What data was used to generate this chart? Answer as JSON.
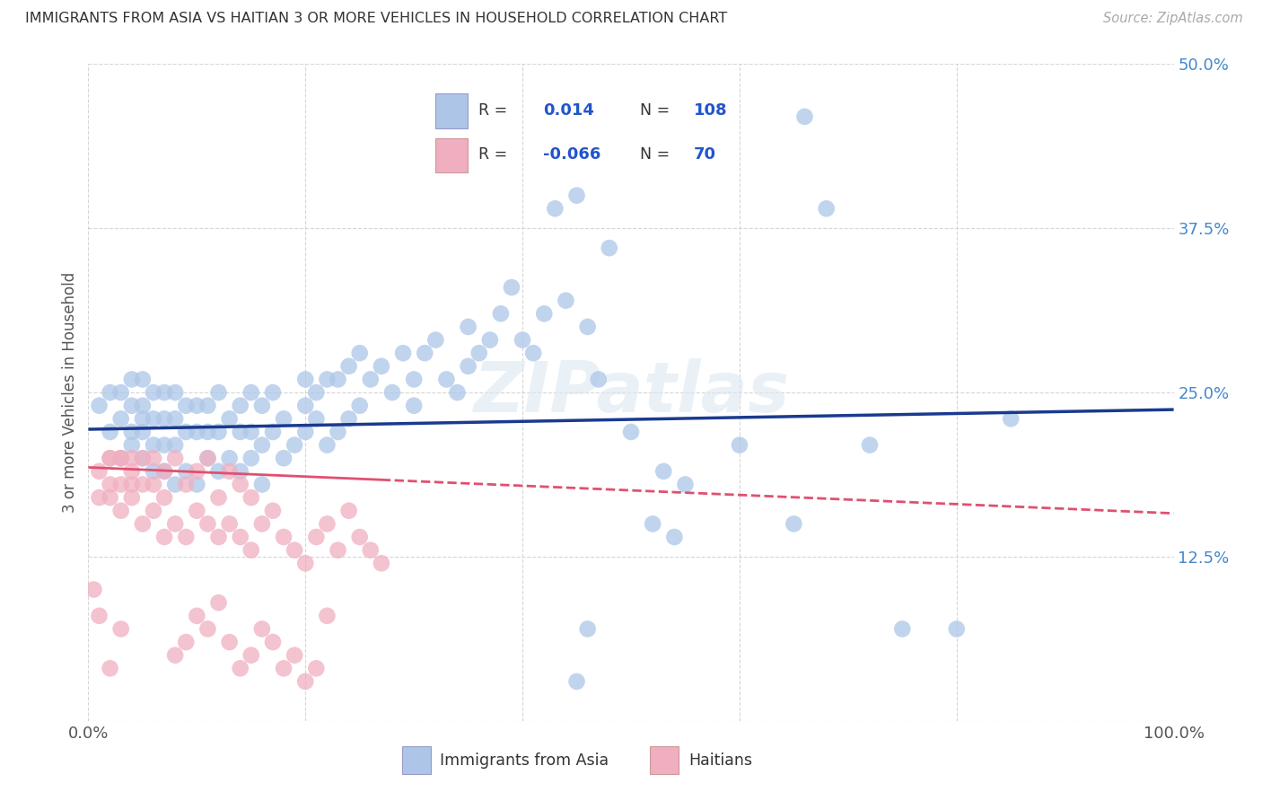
{
  "title": "IMMIGRANTS FROM ASIA VS HAITIAN 3 OR MORE VEHICLES IN HOUSEHOLD CORRELATION CHART",
  "source": "Source: ZipAtlas.com",
  "ylabel": "3 or more Vehicles in Household",
  "xlim": [
    0.0,
    1.0
  ],
  "ylim": [
    0.0,
    0.5
  ],
  "blue_R": "0.014",
  "blue_N": "108",
  "pink_R": "-0.066",
  "pink_N": "70",
  "blue_color": "#adc6e8",
  "pink_color": "#f0afc0",
  "blue_line_color": "#1a3a8f",
  "pink_line_color": "#e05070",
  "legend_label_blue": "Immigrants from Asia",
  "legend_label_pink": "Haitians",
  "watermark": "ZIPatlas",
  "blue_x": [
    0.01,
    0.02,
    0.02,
    0.03,
    0.03,
    0.03,
    0.04,
    0.04,
    0.04,
    0.04,
    0.05,
    0.05,
    0.05,
    0.05,
    0.05,
    0.06,
    0.06,
    0.06,
    0.06,
    0.07,
    0.07,
    0.07,
    0.07,
    0.08,
    0.08,
    0.08,
    0.08,
    0.09,
    0.09,
    0.09,
    0.1,
    0.1,
    0.1,
    0.11,
    0.11,
    0.11,
    0.12,
    0.12,
    0.12,
    0.13,
    0.13,
    0.14,
    0.14,
    0.14,
    0.15,
    0.15,
    0.15,
    0.16,
    0.16,
    0.16,
    0.17,
    0.17,
    0.18,
    0.18,
    0.19,
    0.2,
    0.2,
    0.2,
    0.21,
    0.21,
    0.22,
    0.22,
    0.23,
    0.23,
    0.24,
    0.24,
    0.25,
    0.25,
    0.26,
    0.27,
    0.28,
    0.29,
    0.3,
    0.3,
    0.31,
    0.32,
    0.33,
    0.34,
    0.35,
    0.35,
    0.36,
    0.37,
    0.38,
    0.39,
    0.4,
    0.41,
    0.42,
    0.43,
    0.44,
    0.45,
    0.46,
    0.47,
    0.48,
    0.5,
    0.52,
    0.53,
    0.54,
    0.55,
    0.6,
    0.65,
    0.66,
    0.68,
    0.72,
    0.75,
    0.8,
    0.85,
    0.45,
    0.46
  ],
  "blue_y": [
    0.24,
    0.22,
    0.25,
    0.2,
    0.23,
    0.25,
    0.21,
    0.22,
    0.24,
    0.26,
    0.2,
    0.22,
    0.23,
    0.24,
    0.26,
    0.19,
    0.21,
    0.23,
    0.25,
    0.19,
    0.21,
    0.23,
    0.25,
    0.18,
    0.21,
    0.23,
    0.25,
    0.19,
    0.22,
    0.24,
    0.18,
    0.22,
    0.24,
    0.2,
    0.22,
    0.24,
    0.19,
    0.22,
    0.25,
    0.2,
    0.23,
    0.19,
    0.22,
    0.24,
    0.2,
    0.22,
    0.25,
    0.18,
    0.21,
    0.24,
    0.22,
    0.25,
    0.2,
    0.23,
    0.21,
    0.22,
    0.24,
    0.26,
    0.23,
    0.25,
    0.21,
    0.26,
    0.22,
    0.26,
    0.23,
    0.27,
    0.24,
    0.28,
    0.26,
    0.27,
    0.25,
    0.28,
    0.24,
    0.26,
    0.28,
    0.29,
    0.26,
    0.25,
    0.27,
    0.3,
    0.28,
    0.29,
    0.31,
    0.33,
    0.29,
    0.28,
    0.31,
    0.39,
    0.32,
    0.4,
    0.3,
    0.26,
    0.36,
    0.22,
    0.15,
    0.19,
    0.14,
    0.18,
    0.21,
    0.15,
    0.46,
    0.39,
    0.21,
    0.07,
    0.07,
    0.23,
    0.03,
    0.07
  ],
  "pink_x": [
    0.005,
    0.01,
    0.01,
    0.02,
    0.02,
    0.02,
    0.02,
    0.03,
    0.03,
    0.03,
    0.03,
    0.04,
    0.04,
    0.04,
    0.04,
    0.05,
    0.05,
    0.05,
    0.06,
    0.06,
    0.06,
    0.07,
    0.07,
    0.07,
    0.08,
    0.08,
    0.09,
    0.09,
    0.1,
    0.1,
    0.11,
    0.11,
    0.12,
    0.12,
    0.13,
    0.13,
    0.14,
    0.14,
    0.15,
    0.15,
    0.16,
    0.17,
    0.18,
    0.19,
    0.2,
    0.21,
    0.22,
    0.23,
    0.24,
    0.25,
    0.26,
    0.27,
    0.08,
    0.09,
    0.1,
    0.11,
    0.12,
    0.13,
    0.14,
    0.15,
    0.16,
    0.17,
    0.18,
    0.19,
    0.2,
    0.21,
    0.22,
    0.01,
    0.02,
    0.03
  ],
  "pink_y": [
    0.1,
    0.17,
    0.19,
    0.18,
    0.2,
    0.2,
    0.17,
    0.16,
    0.18,
    0.2,
    0.2,
    0.17,
    0.18,
    0.19,
    0.2,
    0.15,
    0.18,
    0.2,
    0.16,
    0.18,
    0.2,
    0.14,
    0.17,
    0.19,
    0.15,
    0.2,
    0.14,
    0.18,
    0.16,
    0.19,
    0.15,
    0.2,
    0.14,
    0.17,
    0.15,
    0.19,
    0.14,
    0.18,
    0.13,
    0.17,
    0.15,
    0.16,
    0.14,
    0.13,
    0.12,
    0.14,
    0.15,
    0.13,
    0.16,
    0.14,
    0.13,
    0.12,
    0.05,
    0.06,
    0.08,
    0.07,
    0.09,
    0.06,
    0.04,
    0.05,
    0.07,
    0.06,
    0.04,
    0.05,
    0.03,
    0.04,
    0.08,
    0.08,
    0.04,
    0.07
  ]
}
